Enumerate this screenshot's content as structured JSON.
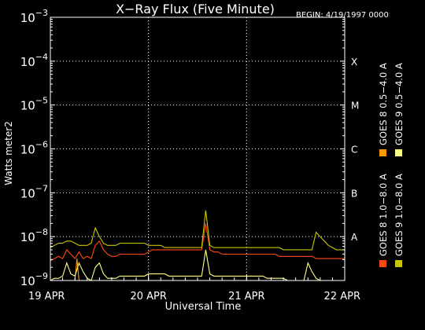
{
  "chart_data": {
    "type": "line",
    "title": "X−Ray Flux (Five Minute)",
    "begin_label": "BEGIN: 4/19/1997 0000",
    "xlabel": "Universal Time",
    "ylabel": "Watts meter2",
    "x_tick_labels": [
      "19 APR",
      "20 APR",
      "21 APR",
      "22 APR"
    ],
    "xlim": [
      0,
      72
    ],
    "ylim_log10": [
      -9,
      -3
    ],
    "y_scale": "log",
    "y_ticks": [
      {
        "base": "10",
        "exp": "−3",
        "log10": -3
      },
      {
        "base": "10",
        "exp": "−4",
        "log10": -4
      },
      {
        "base": "10",
        "exp": "−5",
        "log10": -5
      },
      {
        "base": "10",
        "exp": "−6",
        "log10": -6
      },
      {
        "base": "10",
        "exp": "−7",
        "log10": -7
      },
      {
        "base": "10",
        "exp": "−8",
        "log10": -8
      },
      {
        "base": "10",
        "exp": "−9",
        "log10": -9
      }
    ],
    "flare_classes": [
      {
        "label": "X",
        "log10": -4
      },
      {
        "label": "M",
        "log10": -5
      },
      {
        "label": "C",
        "log10": -6
      },
      {
        "label": "B",
        "log10": -7
      },
      {
        "label": "A",
        "log10": -8
      }
    ],
    "grid": true,
    "legend_position": "right",
    "series": [
      {
        "name": "GOES 8 1.0−8.0 A",
        "color": "#ff4a14",
        "x_hours": [
          0,
          1,
          2,
          3,
          4,
          5,
          6,
          7,
          8,
          9,
          10,
          11,
          12,
          13,
          14,
          15,
          16,
          17,
          18,
          19,
          20,
          21,
          22,
          23,
          24,
          25,
          26,
          27,
          28,
          29,
          30,
          31,
          32,
          33,
          34,
          35,
          36,
          37,
          38,
          39,
          40,
          41,
          42,
          43,
          44,
          45,
          46,
          47,
          48,
          49,
          50,
          51,
          52,
          53,
          54,
          55,
          56,
          57,
          58,
          59,
          60,
          61,
          62,
          63,
          64,
          65,
          66,
          67,
          68,
          69,
          70,
          71,
          72
        ],
        "log10_flux": [
          -8.55,
          -8.5,
          -8.45,
          -8.5,
          -8.3,
          -8.4,
          -8.5,
          -8.35,
          -8.5,
          -8.45,
          -8.5,
          -8.2,
          -8.1,
          -8.3,
          -8.4,
          -8.45,
          -8.45,
          -8.4,
          -8.4,
          -8.4,
          -8.4,
          -8.4,
          -8.4,
          -8.4,
          -8.35,
          -8.3,
          -8.3,
          -8.3,
          -8.3,
          -8.3,
          -8.3,
          -8.3,
          -8.3,
          -8.3,
          -8.3,
          -8.3,
          -8.3,
          -8.3,
          -7.7,
          -8.3,
          -8.35,
          -8.35,
          -8.4,
          -8.4,
          -8.4,
          -8.4,
          -8.4,
          -8.4,
          -8.4,
          -8.4,
          -8.4,
          -8.4,
          -8.4,
          -8.4,
          -8.4,
          -8.4,
          -8.45,
          -8.45,
          -8.45,
          -8.45,
          -8.45,
          -8.45,
          -8.45,
          -8.45,
          -8.45,
          -8.5,
          -8.5,
          -8.5,
          -8.5,
          -8.5,
          -8.5,
          -8.5,
          -8.5
        ]
      },
      {
        "name": "GOES 8 0.5−4.0 A",
        "color": "#ff9a00",
        "x_hours": [
          0,
          1,
          2,
          3,
          4,
          5,
          6,
          6.5,
          7,
          8,
          9,
          10,
          11,
          12,
          13,
          14,
          15,
          16,
          17,
          18,
          19,
          20,
          21,
          22,
          23,
          24,
          25,
          26,
          27,
          28,
          29,
          30,
          31,
          32,
          33,
          34,
          35,
          36,
          37,
          38,
          39,
          40,
          41,
          42,
          43,
          44,
          45,
          46,
          47,
          48,
          49,
          50,
          51,
          52,
          53,
          54,
          55,
          56,
          57,
          58,
          59,
          60,
          61,
          62,
          63,
          64,
          65,
          66,
          67,
          68,
          69,
          70,
          71,
          72
        ],
        "log10_flux": [
          -9.5,
          -9.5,
          -9.5,
          -9.5,
          -9.1,
          -9.3,
          -9.5,
          -8.5,
          -9.0,
          -9.2,
          -9.4,
          -9.4,
          -9.1,
          -9.4,
          -9.5,
          -9.5,
          -9.5,
          -9.5,
          -9.5,
          -9.5,
          -9.5,
          -9.5,
          -9.5,
          -9.5,
          -9.5,
          -9.5,
          -9.5,
          -9.5,
          -9.5,
          -9.5,
          -9.5,
          -9.5,
          -9.5,
          -9.5,
          -9.5,
          -9.5,
          -9.5,
          -9.5,
          -9.0,
          -9.5,
          -9.5,
          -9.5,
          -9.5,
          -9.5,
          -9.5,
          -9.5,
          -9.5,
          -9.5,
          -9.5,
          -9.5,
          -9.5,
          -9.5,
          -9.5,
          -9.5,
          -9.5,
          -9.5,
          -9.5,
          -9.5,
          -9.5,
          -9.5,
          -9.5,
          -9.5,
          -9.5,
          -9.5,
          -9.5,
          -9.5,
          -9.5,
          -9.5,
          -9.5,
          -9.5,
          -9.5,
          -9.5,
          -9.5,
          -9.5
        ]
      },
      {
        "name": "GOES 9 1.0−8.0 A",
        "color": "#c8c800",
        "x_hours": [
          0,
          1,
          2,
          3,
          4,
          5,
          6,
          7,
          8,
          9,
          10,
          11,
          12,
          13,
          14,
          15,
          16,
          17,
          18,
          19,
          20,
          21,
          22,
          23,
          24,
          25,
          26,
          27,
          28,
          29,
          30,
          31,
          32,
          33,
          34,
          35,
          36,
          37,
          38,
          39,
          40,
          41,
          42,
          43,
          44,
          45,
          46,
          47,
          48,
          49,
          50,
          51,
          52,
          53,
          54,
          55,
          56,
          57,
          58,
          59,
          60,
          61,
          62,
          63,
          64,
          65,
          66,
          67,
          68,
          69,
          70,
          71,
          72
        ],
        "log10_flux": [
          -8.25,
          -8.2,
          -8.15,
          -8.15,
          -8.1,
          -8.1,
          -8.15,
          -8.2,
          -8.2,
          -8.2,
          -8.15,
          -7.8,
          -8.0,
          -8.15,
          -8.2,
          -8.2,
          -8.2,
          -8.15,
          -8.15,
          -8.15,
          -8.15,
          -8.15,
          -8.15,
          -8.15,
          -8.2,
          -8.2,
          -8.2,
          -8.2,
          -8.25,
          -8.25,
          -8.25,
          -8.25,
          -8.25,
          -8.25,
          -8.25,
          -8.25,
          -8.25,
          -8.25,
          -7.4,
          -8.2,
          -8.25,
          -8.25,
          -8.25,
          -8.25,
          -8.25,
          -8.25,
          -8.25,
          -8.25,
          -8.25,
          -8.25,
          -8.25,
          -8.25,
          -8.25,
          -8.25,
          -8.25,
          -8.25,
          -8.25,
          -8.3,
          -8.3,
          -8.3,
          -8.3,
          -8.3,
          -8.3,
          -8.3,
          -8.3,
          -7.9,
          -8.0,
          -8.1,
          -8.2,
          -8.25,
          -8.3,
          -8.3,
          -8.3
        ]
      },
      {
        "name": "GOES 9 0.5−4.0 A",
        "color": "#ffff88",
        "x_hours": [
          0,
          1,
          2,
          3,
          4,
          5,
          6,
          7,
          8,
          9,
          10,
          11,
          12,
          13,
          14,
          15,
          16,
          17,
          18,
          19,
          20,
          21,
          22,
          23,
          24,
          25,
          26,
          27,
          28,
          29,
          30,
          31,
          32,
          33,
          34,
          35,
          36,
          37,
          38,
          39,
          40,
          41,
          42,
          43,
          44,
          45,
          46,
          47,
          48,
          49,
          50,
          51,
          52,
          53,
          54,
          55,
          56,
          57,
          58,
          59,
          60,
          61,
          62,
          63,
          64,
          65,
          66,
          67,
          68,
          69,
          70,
          71,
          72
        ],
        "log10_flux": [
          -9.0,
          -8.95,
          -8.95,
          -8.9,
          -8.6,
          -8.85,
          -8.9,
          -8.6,
          -8.8,
          -8.95,
          -9.0,
          -8.7,
          -8.6,
          -8.85,
          -8.95,
          -8.95,
          -8.95,
          -8.9,
          -8.9,
          -8.9,
          -8.9,
          -8.9,
          -8.9,
          -8.9,
          -8.85,
          -8.85,
          -8.85,
          -8.85,
          -8.85,
          -8.9,
          -8.9,
          -8.9,
          -8.9,
          -8.9,
          -8.9,
          -8.9,
          -8.9,
          -8.9,
          -8.3,
          -8.85,
          -8.9,
          -8.9,
          -8.9,
          -8.9,
          -8.9,
          -8.9,
          -8.9,
          -8.9,
          -8.9,
          -8.9,
          -8.9,
          -8.9,
          -8.9,
          -8.95,
          -8.95,
          -8.95,
          -8.95,
          -8.95,
          -9.0,
          -9.0,
          -9.0,
          -9.0,
          -9.0,
          -8.6,
          -8.8,
          -8.95,
          -9.0,
          -9.0,
          -9.0,
          -9.0,
          -9.0,
          -9.0,
          -9.0
        ]
      }
    ]
  }
}
